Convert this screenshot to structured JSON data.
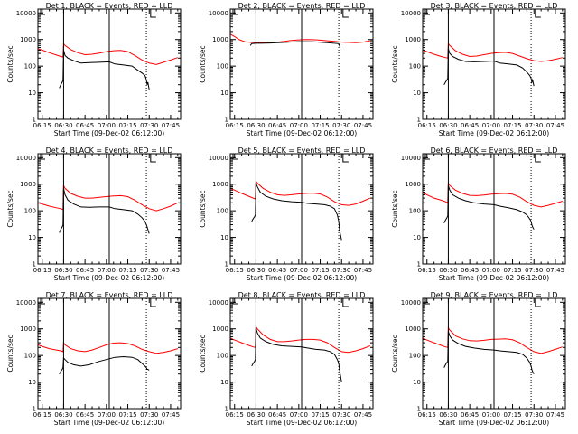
{
  "figure": {
    "time_axis": {
      "tick_labels": [
        "06:15",
        "06:30",
        "06:45",
        "07:00",
        "07:15",
        "07:30",
        "07:45"
      ],
      "tick_minutes": [
        15,
        30,
        45,
        60,
        75,
        90,
        105
      ],
      "x_range_minutes": [
        12,
        112
      ],
      "xlabel": "Start Time (09-Dec-02 06:12:00)"
    },
    "y_axis": {
      "label": "Counts/sec",
      "tick_labels": [
        "1",
        "10",
        "100",
        "1000",
        "10000"
      ],
      "tick_values": [
        1,
        10,
        100,
        1000,
        10000
      ],
      "ylim": [
        1,
        14000
      ],
      "scale": "log"
    },
    "colors": {
      "events": "#000000",
      "lld": "#ff0000",
      "axis": "#000000"
    }
  },
  "chart_data": [
    {
      "type": "line",
      "detector": "Det 1",
      "title": "Det 1, BLACK = Events, RED = LLD",
      "markers": {
        "solid_vlines": [
          30,
          62
        ],
        "dotted_vlines": [
          88
        ],
        "flag": 91
      },
      "series": [
        {
          "name": "Events",
          "color": "#000000",
          "x": [
            12,
            26,
            27,
            28,
            29,
            29.6,
            30,
            31,
            33,
            37,
            42,
            48,
            55,
            62,
            66,
            72,
            78,
            82,
            85,
            87,
            88,
            88.5,
            89,
            90
          ],
          "y": [
            null,
            null,
            15,
            20,
            25,
            30,
            400,
            250,
            200,
            160,
            130,
            135,
            140,
            145,
            120,
            110,
            100,
            70,
            55,
            45,
            30,
            20,
            25,
            13
          ]
        },
        {
          "name": "LLD",
          "color": "#ff0000",
          "x": [
            12,
            15,
            20,
            25,
            28,
            29.6,
            30,
            31,
            35,
            40,
            45,
            50,
            55,
            60,
            65,
            70,
            75,
            80,
            85,
            90,
            95,
            100,
            105,
            110
          ],
          "y": [
            450,
            400,
            320,
            260,
            230,
            220,
            700,
            600,
            420,
            320,
            270,
            280,
            310,
            350,
            380,
            390,
            350,
            250,
            170,
            130,
            115,
            140,
            170,
            210
          ]
        }
      ]
    },
    {
      "type": "line",
      "detector": "Det 2",
      "title": "Det 2, BLACK = Events, RED = LLD",
      "markers": {
        "solid_vlines": [
          30,
          62
        ],
        "dotted_vlines": [
          88
        ],
        "flag": 91
      },
      "series": [
        {
          "name": "Events",
          "color": "#000000",
          "x": [
            25,
            26,
            27,
            30,
            33,
            40,
            50,
            60,
            70,
            80,
            88,
            89,
            90
          ],
          "y": [
            null,
            600,
            700,
            720,
            720,
            740,
            780,
            830,
            820,
            760,
            700,
            500,
            null
          ]
        },
        {
          "name": "LLD",
          "color": "#ff0000",
          "x": [
            12,
            15,
            18,
            22,
            26,
            30,
            35,
            40,
            45,
            50,
            55,
            60,
            65,
            70,
            75,
            80,
            85,
            90,
            95,
            100,
            105,
            110
          ],
          "y": [
            1600,
            1300,
            1000,
            830,
            780,
            760,
            760,
            770,
            800,
            850,
            920,
            970,
            1000,
            990,
            950,
            900,
            850,
            800,
            780,
            760,
            800,
            900
          ]
        }
      ]
    },
    {
      "type": "line",
      "detector": "Det 3",
      "title": "Det 3, BLACK = Events, RED = LLD",
      "markers": {
        "solid_vlines": [
          30,
          62
        ],
        "dotted_vlines": [
          88
        ],
        "flag": 91
      },
      "series": [
        {
          "name": "Events",
          "color": "#000000",
          "x": [
            12,
            26,
            27,
            28,
            29,
            29.6,
            30,
            31,
            33,
            37,
            42,
            48,
            55,
            62,
            66,
            72,
            78,
            82,
            85,
            87,
            88,
            88.5,
            89,
            90
          ],
          "y": [
            null,
            null,
            20,
            25,
            30,
            35,
            450,
            300,
            230,
            180,
            150,
            145,
            150,
            155,
            130,
            120,
            110,
            85,
            60,
            45,
            35,
            25,
            30,
            18
          ]
        },
        {
          "name": "LLD",
          "color": "#ff0000",
          "x": [
            12,
            15,
            20,
            25,
            28,
            29.6,
            30,
            31,
            35,
            40,
            45,
            50,
            55,
            60,
            65,
            70,
            75,
            80,
            85,
            90,
            95,
            100,
            105,
            110
          ],
          "y": [
            400,
            350,
            280,
            230,
            210,
            200,
            700,
            600,
            380,
            280,
            230,
            240,
            270,
            300,
            320,
            330,
            300,
            240,
            190,
            160,
            150,
            160,
            180,
            210
          ]
        }
      ]
    },
    {
      "type": "line",
      "detector": "Det 4",
      "title": "Det 4, BLACK = Events, RED = LLD",
      "markers": {
        "solid_vlines": [
          30,
          62
        ],
        "dotted_vlines": [
          88
        ],
        "flag": 91
      },
      "series": [
        {
          "name": "Events",
          "color": "#000000",
          "x": [
            12,
            26,
            27,
            28,
            29,
            29.6,
            30,
            31,
            33,
            37,
            42,
            48,
            55,
            62,
            66,
            72,
            78,
            82,
            85,
            87,
            88,
            88.5,
            89,
            90
          ],
          "y": [
            null,
            null,
            15,
            20,
            25,
            30,
            700,
            400,
            250,
            180,
            140,
            135,
            140,
            140,
            120,
            110,
            100,
            75,
            55,
            40,
            30,
            25,
            20,
            14
          ]
        },
        {
          "name": "LLD",
          "color": "#ff0000",
          "x": [
            12,
            15,
            20,
            25,
            28,
            29.6,
            30,
            31,
            35,
            40,
            45,
            50,
            55,
            60,
            65,
            70,
            75,
            80,
            85,
            90,
            95,
            100,
            105,
            110
          ],
          "y": [
            200,
            180,
            150,
            130,
            120,
            110,
            900,
            700,
            450,
            350,
            300,
            300,
            320,
            340,
            360,
            370,
            340,
            250,
            170,
            120,
            100,
            120,
            150,
            200
          ]
        }
      ]
    },
    {
      "type": "line",
      "detector": "Det 5",
      "title": "Det 5, BLACK = Events, RED = LLD",
      "markers": {
        "solid_vlines": [
          30,
          62
        ],
        "dotted_vlines": [
          88
        ],
        "flag": 91
      },
      "series": [
        {
          "name": "Events",
          "color": "#000000",
          "x": [
            12,
            26,
            27,
            28,
            29,
            29.6,
            30,
            31,
            33,
            37,
            42,
            48,
            55,
            62,
            66,
            72,
            78,
            82,
            85,
            87,
            88,
            88.5,
            89,
            90
          ],
          "y": [
            null,
            null,
            40,
            50,
            60,
            70,
            1100,
            800,
            500,
            350,
            280,
            240,
            220,
            210,
            190,
            180,
            170,
            150,
            120,
            70,
            40,
            20,
            14,
            8
          ]
        },
        {
          "name": "LLD",
          "color": "#ff0000",
          "x": [
            12,
            15,
            20,
            25,
            28,
            29.6,
            30,
            31,
            35,
            40,
            45,
            50,
            55,
            60,
            65,
            70,
            75,
            80,
            85,
            90,
            95,
            100,
            105,
            110
          ],
          "y": [
            700,
            600,
            450,
            350,
            300,
            280,
            1300,
            1100,
            700,
            500,
            400,
            380,
            400,
            430,
            450,
            460,
            430,
            330,
            220,
            170,
            160,
            180,
            230,
            300
          ]
        }
      ]
    },
    {
      "type": "line",
      "detector": "Det 6",
      "title": "Det 6, BLACK = Events, RED = LLD",
      "markers": {
        "solid_vlines": [
          30,
          62
        ],
        "dotted_vlines": [
          88
        ],
        "flag": 91
      },
      "series": [
        {
          "name": "Events",
          "color": "#000000",
          "x": [
            12,
            26,
            27,
            28,
            29,
            29.6,
            30,
            31,
            33,
            37,
            42,
            48,
            55,
            62,
            66,
            72,
            78,
            82,
            85,
            87,
            88,
            88.5,
            89,
            90
          ],
          "y": [
            null,
            null,
            35,
            45,
            55,
            65,
            900,
            600,
            400,
            300,
            240,
            200,
            180,
            170,
            150,
            130,
            110,
            90,
            70,
            50,
            40,
            30,
            25,
            20
          ]
        },
        {
          "name": "LLD",
          "color": "#ff0000",
          "x": [
            12,
            15,
            20,
            25,
            28,
            29.6,
            30,
            31,
            35,
            40,
            45,
            50,
            55,
            60,
            65,
            70,
            75,
            80,
            85,
            90,
            95,
            100,
            105,
            110
          ],
          "y": [
            500,
            400,
            300,
            250,
            220,
            200,
            1100,
            900,
            600,
            450,
            380,
            370,
            390,
            420,
            440,
            450,
            420,
            330,
            220,
            160,
            140,
            160,
            190,
            230
          ]
        }
      ]
    },
    {
      "type": "line",
      "detector": "Det 7",
      "title": "Det 7, BLACK = Events, RED = LLD",
      "markers": {
        "solid_vlines": [
          30,
          62
        ],
        "dotted_vlines": [
          88
        ],
        "flag": 91
      },
      "series": [
        {
          "name": "Events",
          "color": "#000000",
          "x": [
            12,
            26,
            27,
            28,
            29,
            29.6,
            30,
            31,
            33,
            37,
            42,
            48,
            55,
            62,
            66,
            72,
            78,
            82,
            85,
            87,
            88,
            88.5,
            89,
            90
          ],
          "y": [
            null,
            null,
            20,
            25,
            30,
            35,
            80,
            70,
            55,
            45,
            40,
            45,
            60,
            75,
            85,
            90,
            85,
            70,
            50,
            40,
            35,
            30,
            30,
            28
          ]
        },
        {
          "name": "LLD",
          "color": "#ff0000",
          "x": [
            12,
            15,
            20,
            25,
            28,
            29.6,
            30,
            31,
            35,
            40,
            45,
            50,
            55,
            60,
            65,
            70,
            75,
            80,
            85,
            90,
            95,
            100,
            105,
            110
          ],
          "y": [
            250,
            220,
            180,
            160,
            150,
            140,
            300,
            250,
            180,
            150,
            140,
            160,
            200,
            250,
            290,
            300,
            280,
            230,
            170,
            140,
            120,
            130,
            150,
            180
          ]
        }
      ]
    },
    {
      "type": "line",
      "detector": "Det 8",
      "title": "Det 8, BLACK = Events, RED = LLD",
      "markers": {
        "solid_vlines": [
          30,
          62
        ],
        "dotted_vlines": [
          88
        ],
        "flag": 91
      },
      "series": [
        {
          "name": "Events",
          "color": "#000000",
          "x": [
            12,
            26,
            27,
            28,
            29,
            29.6,
            30,
            31,
            33,
            37,
            42,
            48,
            55,
            62,
            66,
            72,
            78,
            82,
            85,
            87,
            88,
            88.5,
            89,
            90
          ],
          "y": [
            null,
            null,
            40,
            50,
            60,
            70,
            1100,
            700,
            450,
            330,
            260,
            230,
            220,
            210,
            190,
            170,
            160,
            140,
            110,
            70,
            50,
            30,
            20,
            10
          ]
        },
        {
          "name": "LLD",
          "color": "#ff0000",
          "x": [
            12,
            15,
            20,
            25,
            28,
            29.6,
            30,
            31,
            35,
            40,
            45,
            50,
            55,
            60,
            65,
            70,
            75,
            80,
            85,
            90,
            95,
            100,
            105,
            110
          ],
          "y": [
            450,
            380,
            300,
            240,
            210,
            200,
            1200,
            1000,
            600,
            400,
            330,
            330,
            350,
            380,
            400,
            400,
            380,
            300,
            200,
            140,
            130,
            150,
            180,
            230
          ]
        }
      ]
    },
    {
      "type": "line",
      "detector": "Det 9",
      "title": "Det 9, BLACK = Events, RED = LLD",
      "markers": {
        "solid_vlines": [
          30,
          62
        ],
        "dotted_vlines": [
          88
        ],
        "flag": 91
      },
      "series": [
        {
          "name": "Events",
          "color": "#000000",
          "x": [
            12,
            26,
            27,
            28,
            29,
            29.6,
            30,
            31,
            33,
            37,
            42,
            48,
            55,
            62,
            66,
            72,
            78,
            82,
            85,
            87,
            88,
            88.5,
            89,
            90
          ],
          "y": [
            null,
            null,
            35,
            45,
            55,
            60,
            800,
            550,
            380,
            280,
            220,
            190,
            170,
            160,
            150,
            140,
            130,
            110,
            80,
            55,
            40,
            30,
            25,
            20
          ]
        },
        {
          "name": "LLD",
          "color": "#ff0000",
          "x": [
            12,
            15,
            20,
            25,
            28,
            29.6,
            30,
            31,
            35,
            40,
            45,
            50,
            55,
            60,
            65,
            70,
            75,
            80,
            85,
            90,
            95,
            100,
            105,
            110
          ],
          "y": [
            450,
            380,
            300,
            240,
            210,
            200,
            1100,
            900,
            550,
            420,
            360,
            350,
            370,
            400,
            410,
            420,
            390,
            300,
            200,
            140,
            120,
            140,
            170,
            210
          ]
        }
      ]
    }
  ]
}
